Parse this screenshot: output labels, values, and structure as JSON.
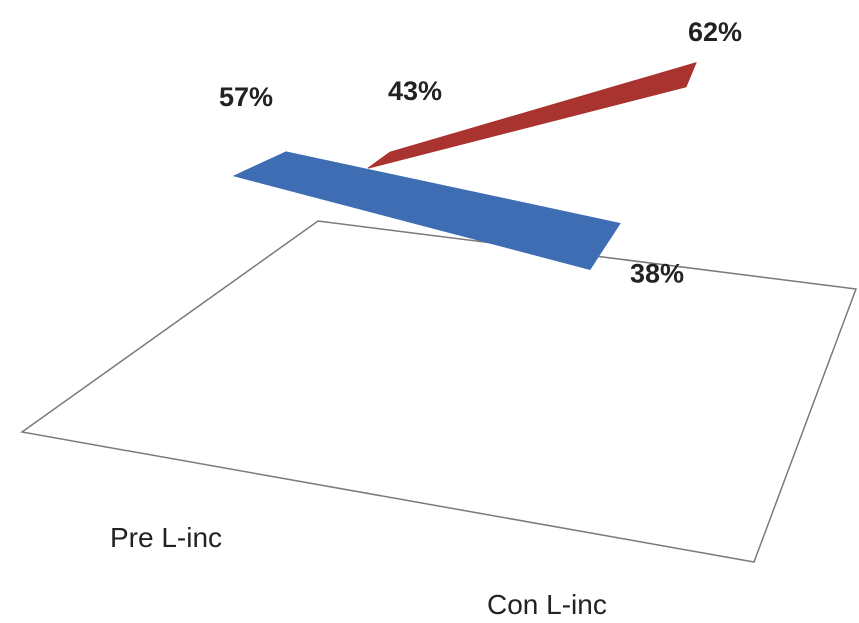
{
  "chart_data": {
    "type": "line",
    "style": "3d-ribbon",
    "categories": [
      "Pre L-inc",
      "Con L-inc"
    ],
    "series": [
      {
        "values": [
          57,
          38
        ],
        "labels": [
          "57%",
          "38%"
        ],
        "color": "#3e6db3"
      },
      {
        "values": [
          43,
          62
        ],
        "labels": [
          "43%",
          "62%"
        ],
        "color": "#a8332f"
      }
    ],
    "unit": "%",
    "grid": false,
    "legend": "none"
  }
}
